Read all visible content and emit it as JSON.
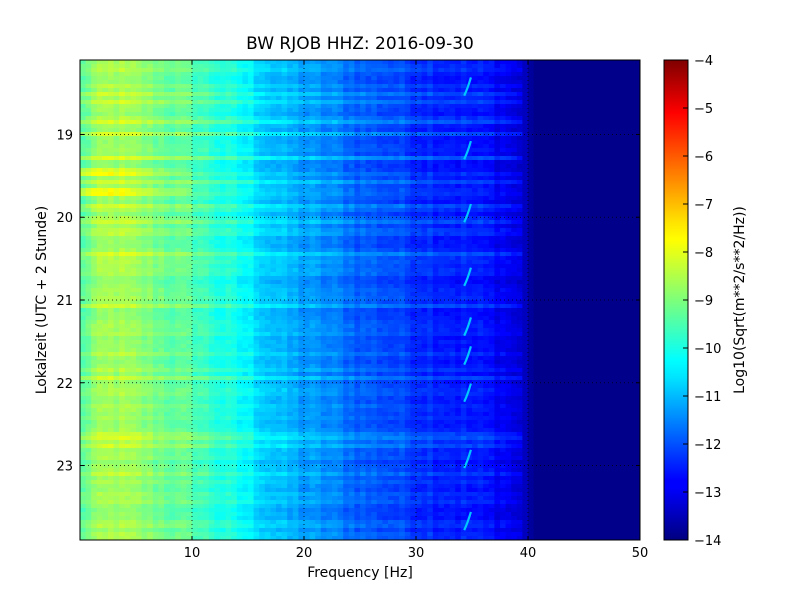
{
  "chart_data": {
    "type": "heatmap",
    "title": "BW RJOB HHZ: 2016-09-30",
    "xlabel": "Frequency [Hz]",
    "ylabel": "Lokalzeit (UTC + 2 Stunde)",
    "xlim": [
      0,
      50
    ],
    "ylim": [
      18.1,
      23.9
    ],
    "y_inverted": true,
    "x_ticks": [
      10,
      20,
      30,
      40,
      50
    ],
    "x_tick_labels": [
      "10",
      "20",
      "30",
      "40",
      "50"
    ],
    "y_ticks": [
      19,
      20,
      21,
      22,
      23
    ],
    "y_tick_labels": [
      "19",
      "20",
      "21",
      "22",
      "23"
    ],
    "grid": true,
    "grid_style": "dotted",
    "colormap": "jet",
    "colorbar": {
      "label": "Log10(Sqrt(m**2/s**2/Hz))",
      "range": [
        -14,
        -4
      ],
      "ticks": [
        -4,
        -5,
        -6,
        -7,
        -8,
        -9,
        -10,
        -11,
        -12,
        -13,
        -14
      ],
      "tick_labels": [
        "−4",
        "−5",
        "−6",
        "−7",
        "−8",
        "−9",
        "−10",
        "−11",
        "−12",
        "−13",
        "−14"
      ]
    },
    "spectral_profile": {
      "frequency_hz": [
        0,
        1,
        3,
        5,
        8,
        10,
        12,
        15,
        17,
        20,
        23,
        25,
        28,
        30,
        33,
        36,
        38,
        39.5,
        40.5,
        45,
        50
      ],
      "log10_amplitude": [
        -9.5,
        -8.9,
        -8.6,
        -8.8,
        -9.2,
        -9.4,
        -9.8,
        -10.3,
        -10.8,
        -11.2,
        -11.5,
        -11.8,
        -12.0,
        -12.2,
        -12.4,
        -12.6,
        -12.8,
        -13.2,
        -13.9,
        -13.9,
        -13.9
      ]
    },
    "notable_features": {
      "strong_low_frequency_bands_hours": [
        19.45,
        19.7
      ],
      "periodic_line_hz": 34.5,
      "periodic_line_hours": [
        18.45,
        19.22,
        19.98,
        20.75,
        21.35,
        21.7,
        22.15,
        22.95,
        23.7
      ]
    }
  }
}
